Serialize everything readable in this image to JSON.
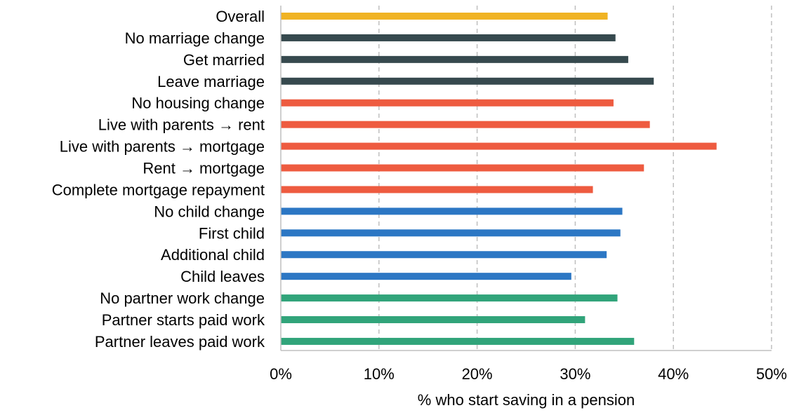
{
  "chart_data": {
    "type": "bar",
    "orientation": "horizontal",
    "title": "",
    "xlabel": "% who start saving in a pension",
    "ylabel": "",
    "xlim": [
      0,
      50
    ],
    "x_ticks": [
      "0%",
      "10%",
      "20%",
      "30%",
      "40%",
      "50%"
    ],
    "grid": "vertical dashed",
    "legend": "none",
    "categories": [
      "Overall",
      "No marriage change",
      "Get married",
      "Leave marriage",
      "No housing change",
      "Live with parents → rent",
      "Live with parents → mortgage",
      "Rent → mortgage",
      "Complete mortgage repayment",
      "No child change",
      "First child",
      "Additional child",
      "Child leaves",
      "No partner work change",
      "Partner starts paid work",
      "Partner leaves paid work"
    ],
    "values": [
      33.3,
      34.1,
      35.4,
      38.0,
      33.9,
      37.6,
      44.4,
      37.0,
      31.8,
      34.8,
      34.6,
      33.2,
      29.6,
      34.3,
      31.0,
      36.0
    ],
    "groups": [
      "overall",
      "marriage",
      "marriage",
      "marriage",
      "housing",
      "housing",
      "housing",
      "housing",
      "housing",
      "child",
      "child",
      "child",
      "child",
      "partner",
      "partner",
      "partner"
    ],
    "group_colors": {
      "overall": "#F0B323",
      "marriage": "#36494E",
      "housing": "#EE5B40",
      "child": "#2C77C4",
      "partner": "#31A47A"
    }
  }
}
